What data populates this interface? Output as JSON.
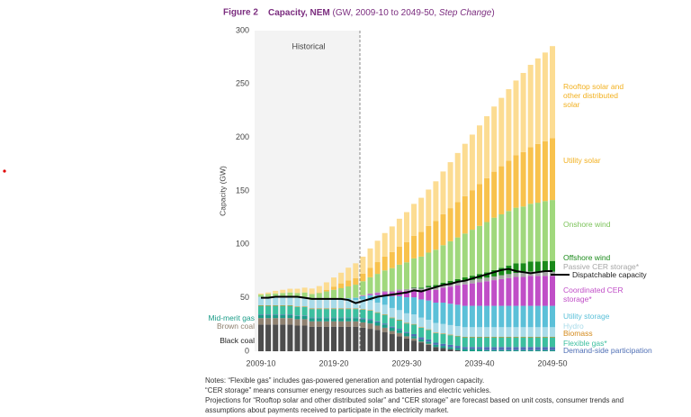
{
  "chart_data": {
    "type": "stacked-bar",
    "figure_label": "Figure 2",
    "title": "Capacity, NEM",
    "subtitle": "(GW, 2009-10 to 2049-50, ",
    "subtitle_italic": "Step Change",
    "subtitle_end": ")",
    "y_label": "Capacity (GW)",
    "annotation": "Historical",
    "ylim": [
      0,
      300
    ],
    "yticks": [
      0,
      50,
      100,
      150,
      200,
      250,
      300
    ],
    "categories": [
      "2009-10",
      null,
      null,
      null,
      null,
      null,
      null,
      null,
      null,
      null,
      "2019-20",
      null,
      null,
      null,
      null,
      null,
      null,
      null,
      null,
      null,
      "2029-30",
      null,
      null,
      null,
      null,
      null,
      null,
      null,
      null,
      null,
      "2039-40",
      null,
      null,
      null,
      null,
      null,
      null,
      null,
      null,
      null,
      "2049-50"
    ],
    "series": [
      {
        "name": "Black coal",
        "color": "#4d4d4d",
        "label_color": "#222222",
        "values": [
          25,
          25,
          25,
          25,
          25,
          24,
          24,
          23,
          23,
          23,
          23,
          23,
          23,
          23,
          22,
          21,
          20,
          18,
          16,
          14,
          12,
          10,
          8,
          6,
          4,
          3,
          2,
          1,
          0,
          0,
          0,
          0,
          0,
          0,
          0,
          0,
          0,
          0,
          0,
          0,
          0
        ]
      },
      {
        "name": "Brown coal",
        "color": "#8f8170",
        "values": [
          6,
          6,
          6,
          6,
          6,
          6,
          6,
          5,
          5,
          5,
          5,
          5,
          5,
          5,
          5,
          5,
          4,
          4,
          3,
          3,
          2,
          2,
          1,
          1,
          0,
          0,
          0,
          0,
          0,
          0,
          0,
          0,
          0,
          0,
          0,
          0,
          0,
          0,
          0,
          0,
          0
        ]
      },
      {
        "name": "Mid-merit gas",
        "color": "#1a9c88",
        "values": [
          3,
          3,
          3,
          3,
          3,
          3,
          3,
          3,
          3,
          3,
          3,
          3,
          3,
          3,
          3,
          3,
          3,
          3,
          3,
          3,
          3,
          2,
          2,
          2,
          2,
          2,
          2,
          2,
          2,
          2,
          2,
          1,
          1,
          1,
          1,
          1,
          1,
          1,
          1,
          1,
          1
        ]
      },
      {
        "name": "Demand-side participation",
        "color": "#4f6fb5",
        "values": [
          0.5,
          0.5,
          0.5,
          0.5,
          0.5,
          0.5,
          0.5,
          0.5,
          0.5,
          0.5,
          0.5,
          0.5,
          0.5,
          0.5,
          1,
          1,
          1,
          1,
          1,
          1,
          1,
          2,
          2,
          2,
          2,
          2,
          2,
          2,
          2,
          2,
          2,
          3,
          3,
          3,
          3,
          3,
          3,
          3,
          3,
          3,
          3
        ]
      },
      {
        "name": "Flexible gas*",
        "color": "#3cbf9f",
        "values": [
          8,
          8,
          8,
          8,
          8,
          8,
          8,
          8,
          8,
          8,
          8,
          8,
          8,
          8,
          8,
          8,
          8,
          8,
          8,
          8,
          8,
          9,
          9,
          9,
          9,
          9,
          9,
          9,
          9,
          9,
          9,
          9,
          9,
          9,
          9,
          9,
          9,
          9,
          9,
          9,
          9
        ]
      },
      {
        "name": "Biomass",
        "color": "#d48a1c",
        "values": [
          0.5,
          0.5,
          0.5,
          0.5,
          0.5,
          0.5,
          0.5,
          0.5,
          0.5,
          0.5,
          0.5,
          0.5,
          0.5,
          0.5,
          0.5,
          0.5,
          0.5,
          0.5,
          0.5,
          0.5,
          0.5,
          0.5,
          0.5,
          0.5,
          0.5,
          0.5,
          0.5,
          0.5,
          0.5,
          0.5,
          0.5,
          0.5,
          0.5,
          0.5,
          0.5,
          0.5,
          0.5,
          0.5,
          0.5,
          0.5,
          0.5
        ]
      },
      {
        "name": "Hydro",
        "color": "#a9dbe9",
        "values": [
          8,
          8,
          8,
          8,
          8,
          8,
          8,
          8,
          8,
          8,
          8,
          8,
          8,
          8,
          9,
          9,
          9,
          9,
          9,
          9,
          9,
          9,
          9,
          9,
          9,
          9,
          9,
          9,
          9,
          9,
          9,
          9,
          9,
          9,
          9,
          9,
          9,
          9,
          9,
          9,
          9
        ]
      },
      {
        "name": "Utility storage",
        "color": "#5bc0d8",
        "values": [
          0,
          0,
          0,
          0,
          0,
          0,
          0,
          0,
          0,
          0,
          0.5,
          1,
          1.5,
          2,
          3,
          5,
          7,
          9,
          11,
          13,
          15,
          16,
          17,
          18,
          19,
          20,
          20,
          20,
          20,
          20,
          20,
          20,
          20,
          20,
          20,
          20,
          20,
          20,
          20,
          20,
          20
        ]
      },
      {
        "name": "Coordinated CER storage*",
        "color": "#c04ec7",
        "values": [
          0,
          0,
          0,
          0,
          0,
          0,
          0,
          0,
          0,
          0,
          0,
          0,
          0,
          0,
          0.5,
          1,
          2,
          3,
          4,
          5,
          6,
          7,
          8,
          10,
          12,
          14,
          16,
          18,
          20,
          21,
          22,
          23,
          24,
          25,
          26,
          27,
          27,
          28,
          28,
          28,
          28
        ]
      },
      {
        "name": "Passive CER storage*",
        "color": "#a6a6a6",
        "values": [
          0,
          0,
          0,
          0,
          0,
          0,
          0,
          0,
          0,
          0,
          0,
          0,
          0.2,
          0.3,
          0.5,
          0.7,
          0.9,
          1.1,
          1.3,
          1.5,
          1.7,
          1.9,
          2.1,
          2.3,
          2.5,
          2.7,
          2.9,
          3,
          3.1,
          3.2,
          3.3,
          3.4,
          3.5,
          3.6,
          3.7,
          3.8,
          3.9,
          4,
          4,
          4,
          4
        ]
      },
      {
        "name": "Offshore wind",
        "color": "#1a8a1a",
        "values": [
          0,
          0,
          0,
          0,
          0,
          0,
          0,
          0,
          0,
          0,
          0,
          0,
          0,
          0,
          0,
          0,
          0,
          0,
          0,
          0,
          0,
          0.5,
          1,
          1.5,
          2,
          2,
          2.5,
          3,
          3.5,
          4,
          4.5,
          5,
          6,
          7,
          8,
          9,
          9,
          9.5,
          9.5,
          10,
          10
        ]
      },
      {
        "name": "Onshore wind",
        "color": "#a0d87c",
        "label_color": "#7cc35a",
        "values": [
          2,
          2.5,
          3,
          3.5,
          4,
          4.5,
          5,
          5.5,
          6.5,
          8,
          9,
          10,
          11,
          12,
          13,
          15,
          17,
          19,
          21,
          23,
          25,
          27,
          29,
          31,
          33,
          35,
          37,
          39,
          41,
          43,
          45,
          47,
          49,
          50,
          51,
          52,
          53,
          54,
          55,
          56,
          57
        ]
      },
      {
        "name": "Utility solar",
        "color": "#f8c24d",
        "label_color": "#f2b01e",
        "values": [
          0,
          0,
          0,
          0,
          0,
          0,
          0,
          0.2,
          0.5,
          1.5,
          3,
          4.5,
          5.5,
          6,
          7,
          9,
          11,
          13,
          15,
          17,
          19,
          21,
          23,
          25,
          27,
          29,
          31,
          33,
          35,
          37,
          39,
          41,
          43,
          45,
          47,
          49,
          51,
          53,
          55,
          56,
          58
        ]
      },
      {
        "name": "Rooftop solar and other distributed solar",
        "color": "#fcdc92",
        "label_color": "#f2b01e",
        "values": [
          1,
          1.5,
          2.5,
          3,
          3.5,
          4,
          4.5,
          5,
          6,
          7,
          8.5,
          10,
          12,
          14,
          16,
          18,
          20,
          22,
          24,
          26,
          28,
          30,
          32,
          34,
          37,
          40,
          43,
          46,
          49,
          52,
          55,
          58,
          61,
          64,
          67,
          70,
          74,
          77,
          80,
          83,
          86
        ]
      }
    ],
    "line_series": {
      "name": "Dispatchable capacity",
      "color": "#000000",
      "values": [
        50,
        50,
        51,
        51,
        51,
        51,
        50,
        49,
        49,
        49,
        49,
        49,
        48,
        45,
        47,
        49,
        51,
        52,
        53,
        54,
        55,
        57,
        56,
        58,
        60,
        62,
        63,
        65,
        66,
        68,
        70,
        72,
        74,
        76,
        77,
        75,
        74,
        73,
        74,
        75,
        75
      ]
    },
    "notes": [
      "Notes: “Flexible gas” includes gas-powered generation and potential hydrogen capacity.",
      "“CER storage” means consumer energy resources such as batteries and electric vehicles.",
      "Projections for “Rooftop solar and other distributed solar” and “CER storage” are forecast based on unit costs, consumer trends and",
      "assumptions about payments received to participate in the electricity market."
    ]
  }
}
